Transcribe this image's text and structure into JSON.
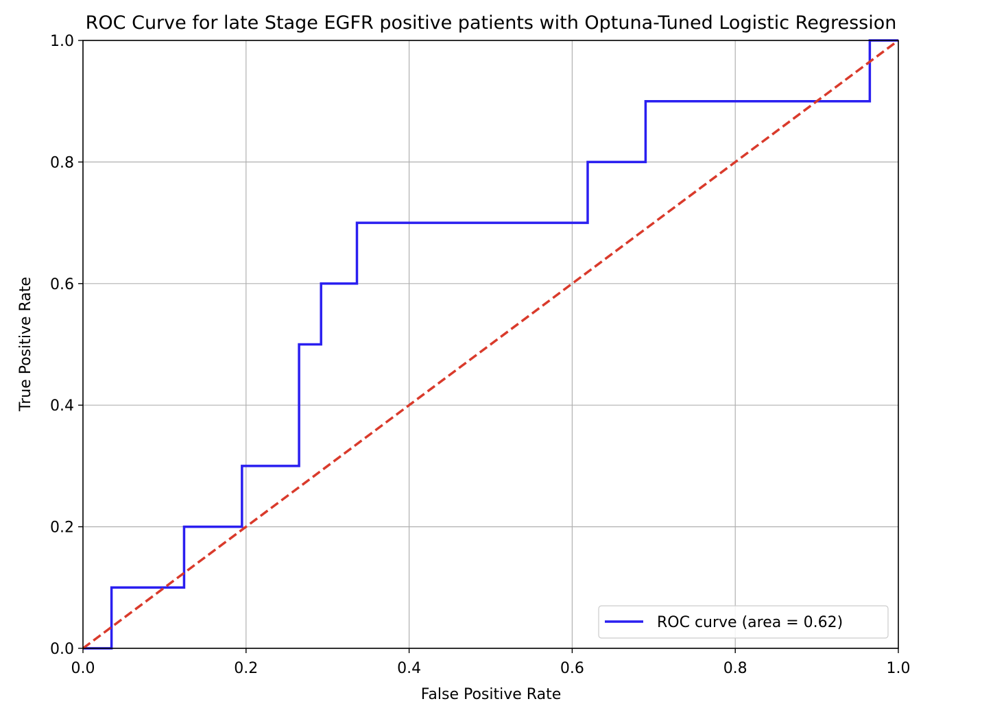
{
  "chart_data": {
    "type": "line",
    "title": "ROC Curve for late Stage EGFR positive patients with Optuna-Tuned Logistic Regression",
    "xlabel": "False Positive Rate",
    "ylabel": "True Positive Rate",
    "xlim": [
      0.0,
      1.0
    ],
    "ylim": [
      0.0,
      1.0
    ],
    "xticks": [
      "0.0",
      "0.2",
      "0.4",
      "0.6",
      "0.8",
      "1.0"
    ],
    "yticks": [
      "0.0",
      "0.2",
      "0.4",
      "0.6",
      "0.8",
      "1.0"
    ],
    "grid": true,
    "legend_position": "lower-right",
    "series": [
      {
        "name": "ROC curve (area = 0.62)",
        "color": "#2a1ff0",
        "style": "solid",
        "x": [
          0.0,
          0.035,
          0.035,
          0.124,
          0.124,
          0.195,
          0.195,
          0.265,
          0.265,
          0.292,
          0.292,
          0.336,
          0.336,
          0.619,
          0.619,
          0.69,
          0.69,
          0.965,
          0.965,
          1.0
        ],
        "y": [
          0.0,
          0.0,
          0.1,
          0.1,
          0.2,
          0.2,
          0.3,
          0.3,
          0.5,
          0.5,
          0.6,
          0.6,
          0.7,
          0.7,
          0.8,
          0.8,
          0.9,
          0.9,
          1.0,
          1.0
        ]
      },
      {
        "color": "#d93a2b",
        "style": "dashed",
        "x": [
          0.0,
          1.0
        ],
        "y": [
          0.0,
          1.0
        ]
      }
    ]
  }
}
